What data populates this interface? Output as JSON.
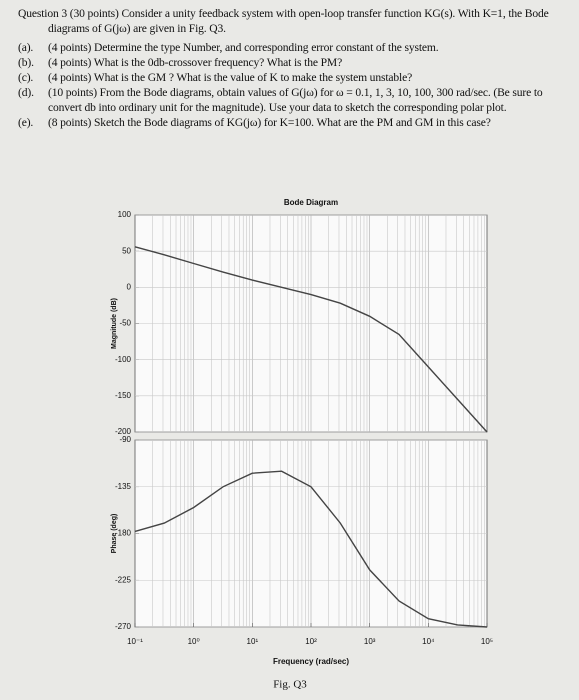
{
  "question": {
    "heading": "Question 3 (30 points) Consider a unity feedback system with open-loop transfer function KG(s). With K=1, the Bode diagrams of G(jω) are given in Fig. Q3.",
    "parts": [
      {
        "label": "(a).",
        "text": "(4 points) Determine the type Number, and corresponding error constant of the system."
      },
      {
        "label": "(b).",
        "text": "(4 points) What is the 0db-crossover frequency? What is the PM?"
      },
      {
        "label": "(c).",
        "text": "(4 points) What is the GM ? What is the value of K to make the system unstable?"
      },
      {
        "label": "(d).",
        "text": "(10 points) From the Bode diagrams, obtain values of G(jω) for ω = 0.1, 1, 3, 10, 100, 300 rad/sec. (Be sure to convert db into ordinary unit for the magnitude). Use your data to sketch the corresponding polar plot."
      },
      {
        "label": "(e).",
        "text": "(8 points) Sketch the Bode diagrams of KG(jω) for K=100. What are the PM and GM in this case?"
      }
    ]
  },
  "figure": {
    "title": "Bode Diagram",
    "x_label": "Frequency (rad/sec)",
    "caption": "Fig. Q3"
  },
  "chart_data": [
    {
      "type": "line",
      "y_label": "Magnitude (dB)",
      "color": "#444444",
      "log_x": true,
      "grid": true,
      "x": [
        0.1,
        0.316,
        1,
        3.16,
        10,
        31.6,
        100,
        316,
        1000,
        3160,
        10000,
        31600,
        100000
      ],
      "values": [
        56,
        45,
        33,
        21,
        10,
        0,
        -10,
        -22,
        -40,
        -65,
        -110,
        -155,
        -200
      ],
      "xlim": [
        0.1,
        100000
      ],
      "ylim": [
        -200,
        100
      ],
      "yticks": [
        -200,
        -150,
        -100,
        -50,
        0,
        50,
        100
      ]
    },
    {
      "type": "line",
      "y_label": "Phase (deg)",
      "color": "#444444",
      "log_x": true,
      "grid": true,
      "x": [
        0.1,
        0.316,
        1,
        3.16,
        10,
        31.6,
        100,
        316,
        1000,
        3160,
        10000,
        31600,
        100000
      ],
      "values": [
        -178,
        -170,
        -155,
        -135,
        -122,
        -120,
        -135,
        -170,
        -215,
        -245,
        -262,
        -268,
        -270
      ],
      "xlim": [
        0.1,
        100000
      ],
      "ylim": [
        -270,
        -90
      ],
      "yticks": [
        -270,
        -225,
        -180,
        -135,
        -90
      ],
      "xticks": [
        {
          "value": 0.1,
          "label": "10⁻¹"
        },
        {
          "value": 1,
          "label": "10⁰"
        },
        {
          "value": 10,
          "label": "10¹"
        },
        {
          "value": 100,
          "label": "10²"
        },
        {
          "value": 1000,
          "label": "10³"
        },
        {
          "value": 10000,
          "label": "10⁴"
        },
        {
          "value": 100000,
          "label": "10⁵"
        }
      ]
    }
  ]
}
